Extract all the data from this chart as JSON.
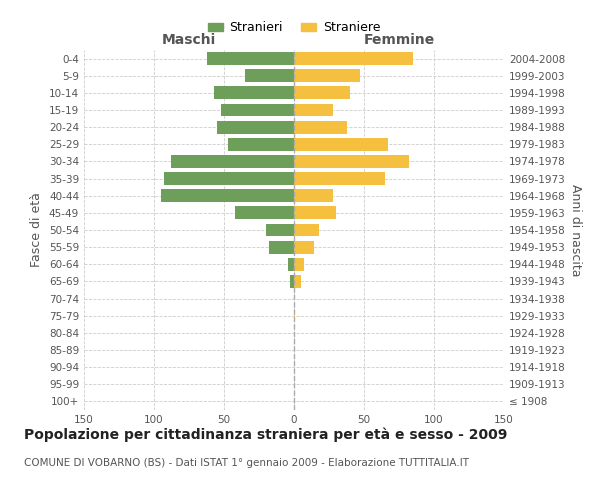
{
  "age_groups": [
    "100+",
    "95-99",
    "90-94",
    "85-89",
    "80-84",
    "75-79",
    "70-74",
    "65-69",
    "60-64",
    "55-59",
    "50-54",
    "45-49",
    "40-44",
    "35-39",
    "30-34",
    "25-29",
    "20-24",
    "15-19",
    "10-14",
    "5-9",
    "0-4"
  ],
  "birth_years": [
    "≤ 1908",
    "1909-1913",
    "1914-1918",
    "1919-1923",
    "1924-1928",
    "1929-1933",
    "1934-1938",
    "1939-1943",
    "1944-1948",
    "1949-1953",
    "1954-1958",
    "1959-1963",
    "1964-1968",
    "1969-1973",
    "1974-1978",
    "1979-1983",
    "1984-1988",
    "1989-1993",
    "1994-1998",
    "1999-2003",
    "2004-2008"
  ],
  "males": [
    0,
    0,
    0,
    0,
    0,
    0,
    0,
    3,
    4,
    18,
    20,
    42,
    95,
    93,
    88,
    47,
    55,
    52,
    57,
    35,
    62
  ],
  "females": [
    0,
    0,
    0,
    0,
    0,
    1,
    0,
    5,
    7,
    14,
    18,
    30,
    28,
    65,
    82,
    67,
    38,
    28,
    40,
    47,
    85
  ],
  "male_color": "#6d9e5a",
  "female_color": "#f5c040",
  "center_line_color": "#aaaaaa",
  "grid_color": "#cccccc",
  "background_color": "#ffffff",
  "title": "Popolazione per cittadinanza straniera per età e sesso - 2009",
  "subtitle": "COMUNE DI VOBARNO (BS) - Dati ISTAT 1° gennaio 2009 - Elaborazione TUTTITALIA.IT",
  "xlabel_left": "Maschi",
  "xlabel_right": "Femmine",
  "ylabel_left": "Fasce di età",
  "ylabel_right": "Anni di nascita",
  "legend_male": "Stranieri",
  "legend_female": "Straniere",
  "xlim": 150,
  "title_fontsize": 10,
  "subtitle_fontsize": 7.5,
  "label_fontsize": 9,
  "tick_fontsize": 7.5,
  "bar_height": 0.75
}
